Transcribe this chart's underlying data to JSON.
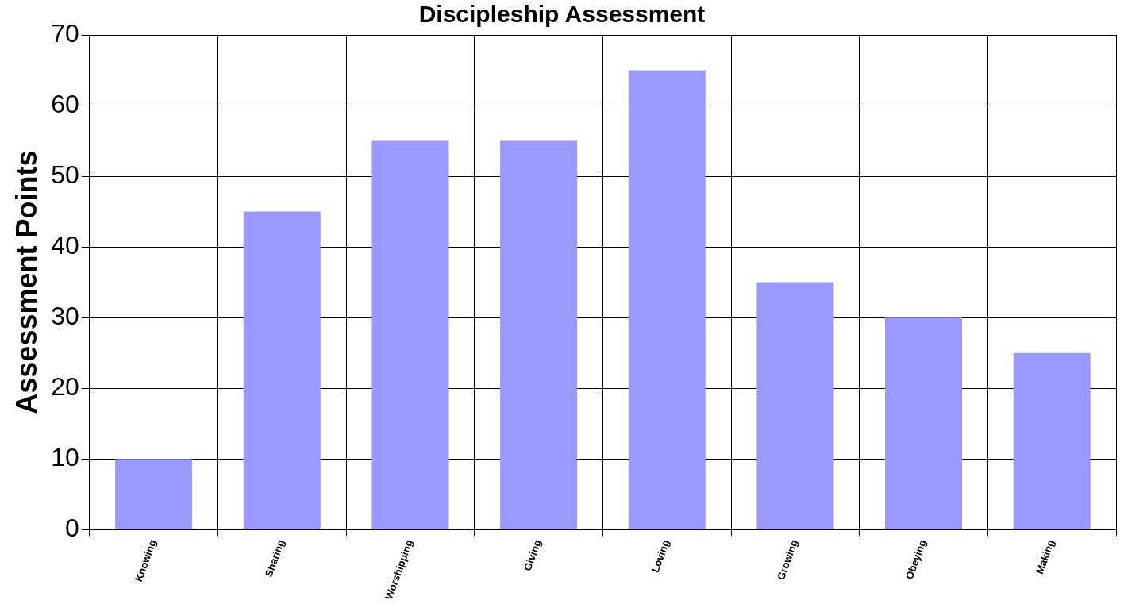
{
  "chart_data": {
    "type": "bar",
    "title": "Discipleship Assessment",
    "ylabel": "Assessment Points",
    "categories": [
      "Knowing",
      "Sharing",
      "Worshipping",
      "Giving",
      "Loving",
      "Growing",
      "Obeying",
      "Making"
    ],
    "values": [
      10,
      45,
      55,
      55,
      65,
      35,
      30,
      25
    ],
    "color": "#9999ff",
    "ylim": [
      0,
      70
    ],
    "yticks": [
      0,
      10,
      20,
      30,
      40,
      50,
      60,
      70
    ],
    "grid": true,
    "legend": false
  }
}
